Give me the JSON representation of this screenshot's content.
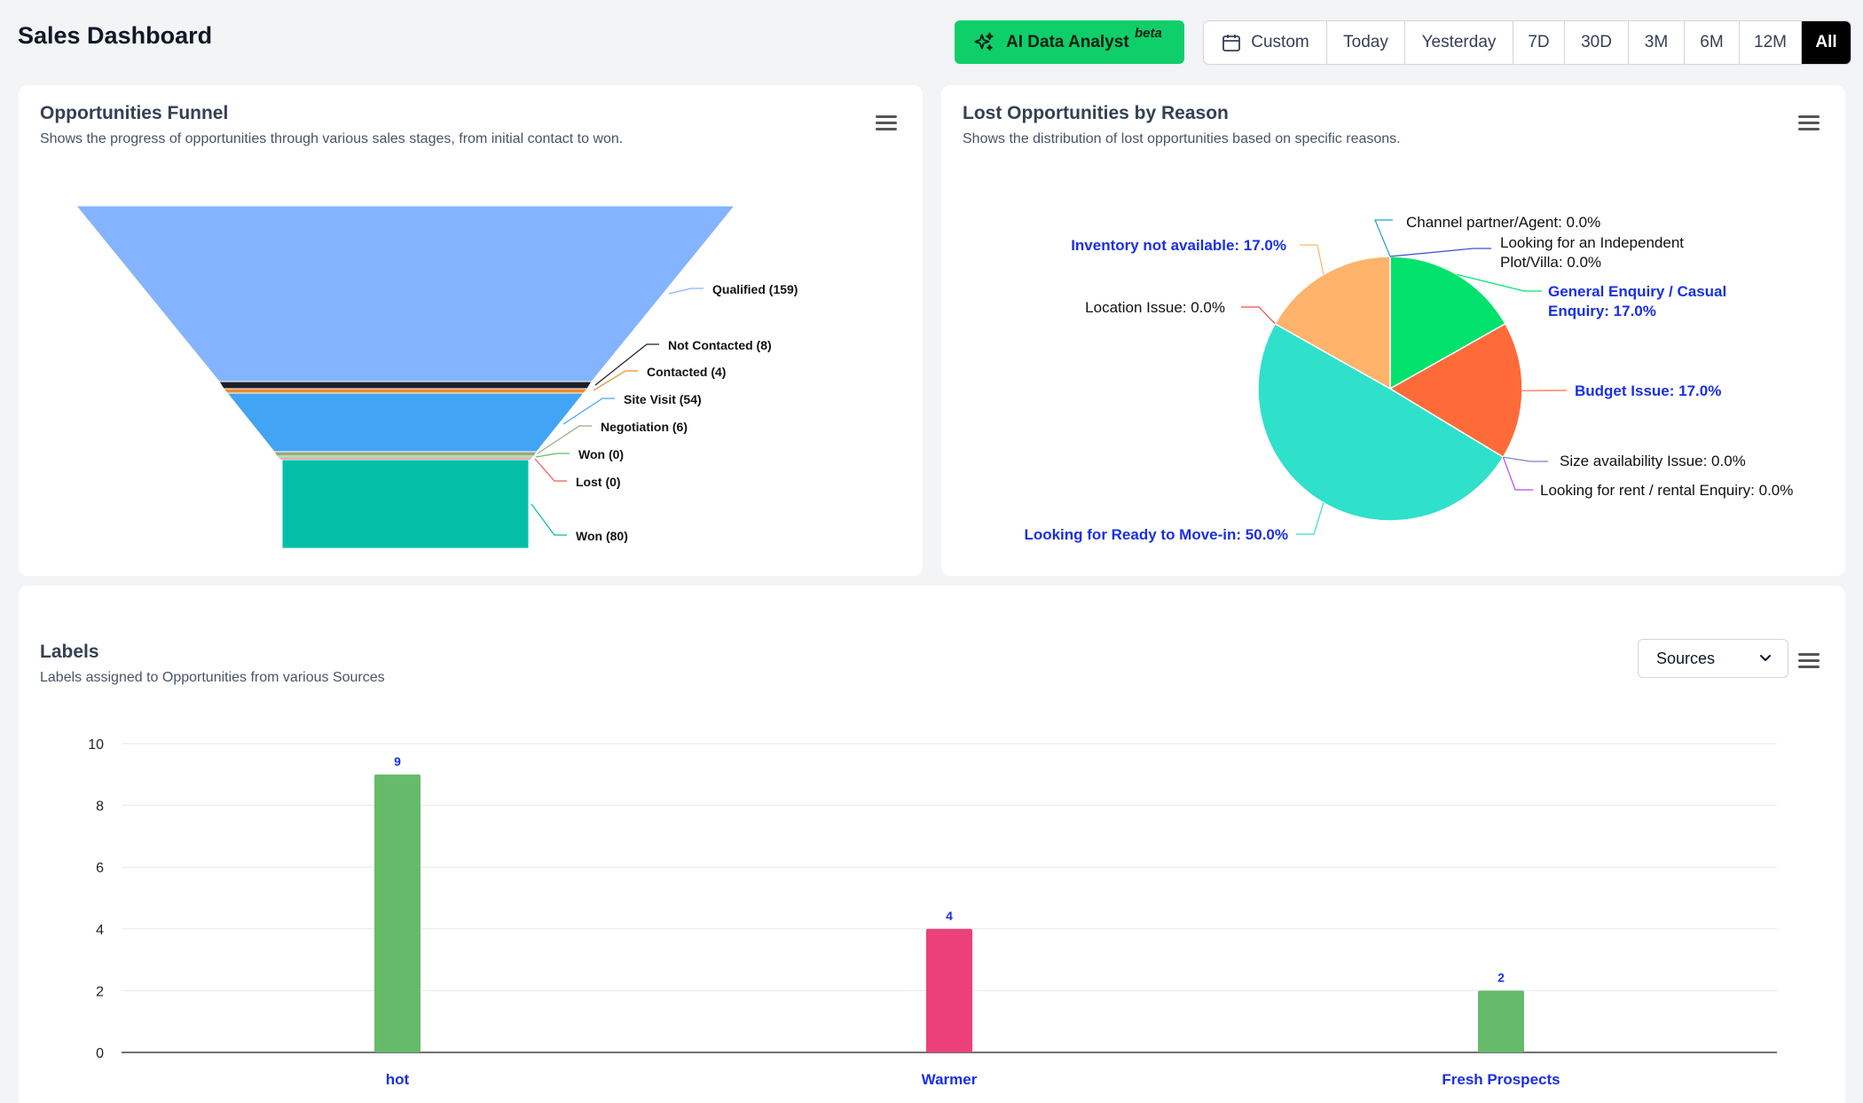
{
  "header": {
    "title": "Sales Dashboard",
    "ai_button": {
      "label": "AI Data Analyst",
      "badge": "beta",
      "icon": "sparkles-icon",
      "color": "#0fcf6a"
    },
    "range_buttons": [
      {
        "label": "Custom",
        "icon": "calendar-icon",
        "active": false
      },
      {
        "label": "Today",
        "active": false
      },
      {
        "label": "Yesterday",
        "active": false
      },
      {
        "label": "7D",
        "active": false
      },
      {
        "label": "30D",
        "active": false
      },
      {
        "label": "3M",
        "active": false
      },
      {
        "label": "6M",
        "active": false
      },
      {
        "label": "12M",
        "active": false
      },
      {
        "label": "All",
        "active": true
      }
    ]
  },
  "funnel_card": {
    "title": "Opportunities Funnel",
    "subtitle": "Shows the progress of opportunities through various sales stages, from initial contact to won.",
    "menu_icon": "hamburger-menu-icon"
  },
  "pie_card": {
    "title": "Lost Opportunities by Reason",
    "subtitle": "Shows the distribution of lost opportunities based on specific reasons.",
    "menu_icon": "hamburger-menu-icon"
  },
  "labels_card": {
    "title": "Labels",
    "subtitle": "Labels assigned to Opportunities from various Sources",
    "select_value": "Sources",
    "menu_icon": "hamburger-menu-icon"
  },
  "chart_data": [
    {
      "type": "funnel",
      "title": "Opportunities Funnel",
      "stages": [
        {
          "label": "Qualified (159)",
          "value": 159,
          "color": "#84b3ff"
        },
        {
          "label": "Not Contacted (8)",
          "value": 8,
          "color": "#1d1f2b"
        },
        {
          "label": "Contacted (4)",
          "value": 4,
          "color": "#f08a2c"
        },
        {
          "label": "Site Visit (54)",
          "value": 54,
          "color": "#42a4f5"
        },
        {
          "label": "Negotiation (6)",
          "value": 6,
          "color": "#9aa87e"
        },
        {
          "label": "Won (0)",
          "value": 0,
          "color": "#5fbf60"
        },
        {
          "label": "Lost (0)",
          "value": 0,
          "color": "#f25757"
        },
        {
          "label": "Won (80)",
          "value": 80,
          "color": "#04bfa7"
        }
      ]
    },
    {
      "type": "pie",
      "title": "Lost Opportunities by Reason",
      "slices": [
        {
          "label": "Channel partner/Agent: 0.0%",
          "value": 0.0,
          "color": "#1fa0cf",
          "highlight": false
        },
        {
          "label": "Looking for an Independent Plot/Villa: 0.0%",
          "value": 0.0,
          "color": "#3d4dc7",
          "highlight": false
        },
        {
          "label": "General Enquiry / Casual Enquiry: 17.0%",
          "value": 17.0,
          "color": "#03e26d",
          "highlight": true
        },
        {
          "label": "Budget Issue: 17.0%",
          "value": 17.0,
          "color": "#ff6a39",
          "highlight": true
        },
        {
          "label": "Size availability Issue: 0.0%",
          "value": 0.0,
          "color": "#7d7fc8",
          "highlight": false
        },
        {
          "label": "Looking for rent / rental Enquiry: 0.0%",
          "value": 0.0,
          "color": "#b44ce6",
          "highlight": false
        },
        {
          "label": "Looking for Ready to Move-in: 50.0%",
          "value": 50.0,
          "color": "#2fe0cb",
          "highlight": true
        },
        {
          "label": "Location Issue: 0.0%",
          "value": 0.0,
          "color": "#f04a4a",
          "highlight": false
        },
        {
          "label": "Inventory not available: 17.0%",
          "value": 17.0,
          "color": "#ffb36b",
          "highlight": true
        }
      ]
    },
    {
      "type": "bar",
      "title": "Labels",
      "categories": [
        "hot",
        "Warmer",
        "Fresh Prospects"
      ],
      "values": [
        9,
        4,
        2
      ],
      "colors": [
        "#66bb6a",
        "#ec407a",
        "#66bb6a"
      ],
      "ylim": [
        0,
        10
      ],
      "yticks": [
        0,
        2,
        4,
        6,
        8,
        10
      ],
      "grid": true
    }
  ]
}
